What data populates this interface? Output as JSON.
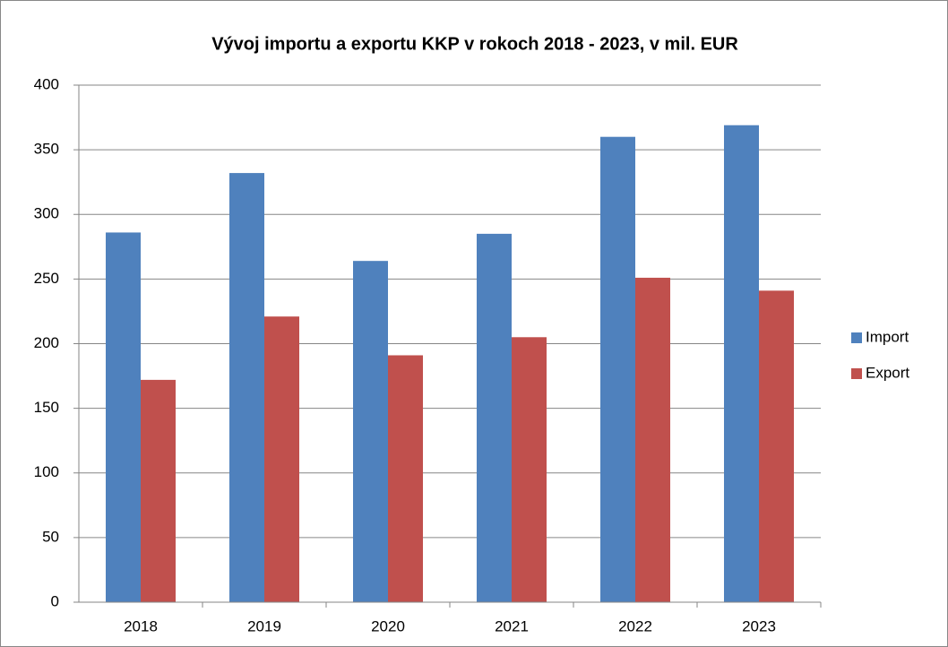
{
  "chart_data": {
    "type": "bar",
    "title": "Vývoj importu a exportu KKP v rokoch 2018 - 2023, v mil. EUR",
    "categories": [
      "2018",
      "2019",
      "2020",
      "2021",
      "2022",
      "2023"
    ],
    "series": [
      {
        "name": "Import",
        "color": "#4f81bd",
        "values": [
          286,
          332,
          264,
          285,
          360,
          369
        ]
      },
      {
        "name": "Export",
        "color": "#c0504d",
        "values": [
          172,
          221,
          191,
          205,
          251,
          241
        ]
      }
    ],
    "ylim": [
      0,
      400
    ],
    "yticks": [
      0,
      50,
      100,
      150,
      200,
      250,
      300,
      350,
      400
    ],
    "grid": true,
    "legend": "right"
  }
}
